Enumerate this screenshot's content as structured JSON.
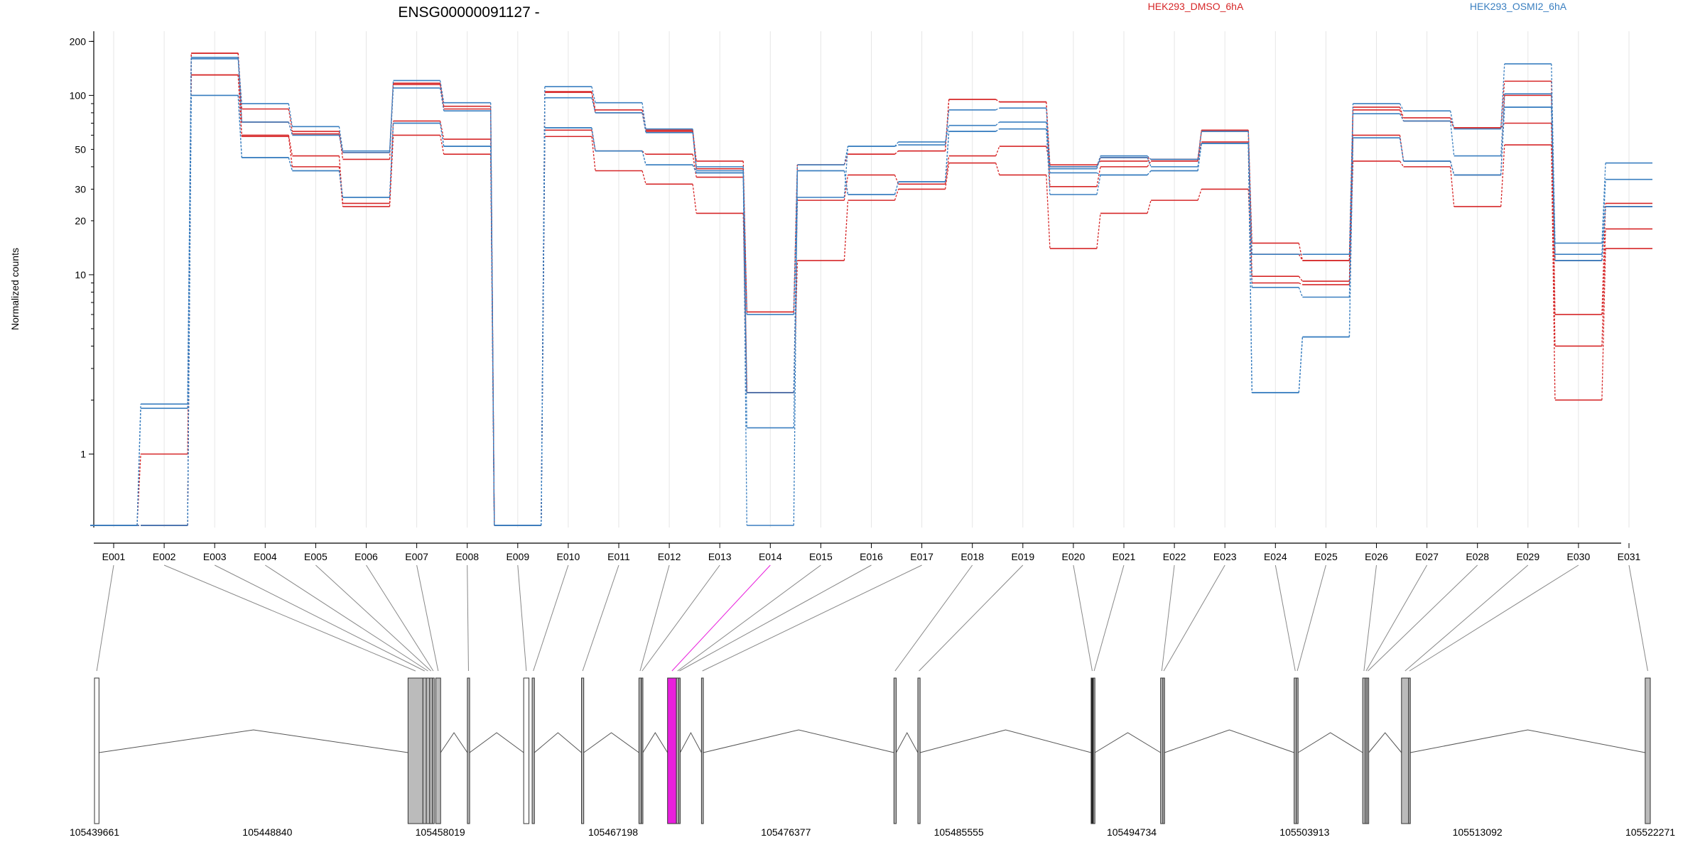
{
  "title": "ENSG00000091127 -",
  "colors": {
    "HEK293_DMSO_6hA": "#d62728",
    "HEK293_OSMI2_6hA": "#3a7fc0",
    "highlight": "#e81fdc",
    "exon_fill": "#bbbbbb",
    "axis": "#000000",
    "grid": "#e6e6e6"
  },
  "chart_data": {
    "type": "line",
    "title": "ENSG00000091127 -",
    "ylabel": "Normalized counts",
    "xlabel": "",
    "y_scale": "log",
    "ylim": [
      0.4,
      210
    ],
    "grid": "vertical",
    "legend": [
      {
        "name": "HEK293_DMSO_6hA",
        "color": "#d62728"
      },
      {
        "name": "HEK293_OSMI2_6hA",
        "color": "#3a7fc0"
      }
    ],
    "legend_placement": "top",
    "y_ticks": [
      1,
      10,
      20,
      30,
      50,
      100,
      200
    ],
    "y_tick_labels": [
      "1",
      "10",
      "20",
      "30",
      "50",
      "100",
      "200"
    ],
    "categories": [
      "E001",
      "E002",
      "E003",
      "E004",
      "E005",
      "E006",
      "E007",
      "E008",
      "E009",
      "E010",
      "E011",
      "E012",
      "E013",
      "E014",
      "E015",
      "E016",
      "E017",
      "E018",
      "E019",
      "E020",
      "E021",
      "E022",
      "E023",
      "E024",
      "E025",
      "E026",
      "E027",
      "E028",
      "E029",
      "E030",
      "E031"
    ],
    "series": [
      {
        "name": "HEK293_DMSO_6hA",
        "group": "HEK293_DMSO_6hA",
        "values": [
          0.4,
          1.0,
          172,
          84,
          63,
          44,
          117,
          87,
          0.4,
          105,
          83,
          64,
          43,
          6.2,
          41,
          47,
          49,
          95,
          92,
          41,
          43,
          44,
          64,
          15,
          12,
          86,
          75,
          66,
          120,
          6.0,
          25
        ]
      },
      {
        "name": "HEK293_DMSO_6hA",
        "group": "HEK293_DMSO_6hA",
        "values": [
          0.4,
          0.4,
          130,
          60,
          46,
          25,
          72,
          57,
          0.4,
          64,
          49,
          47,
          35,
          6.2,
          41,
          47,
          49,
          95,
          92,
          31,
          40,
          43,
          63,
          9.8,
          9.2,
          83,
          72,
          66,
          70,
          4.0,
          18
        ]
      },
      {
        "name": "HEK293_DMSO_6hA",
        "group": "HEK293_DMSO_6hA",
        "values": [
          0.4,
          0.4,
          130,
          59,
          40,
          24,
          60,
          47,
          0.4,
          59,
          38,
          32,
          22,
          2.2,
          12,
          26,
          30,
          42,
          36,
          14,
          22,
          26,
          30,
          9.0,
          8.8,
          43,
          40,
          24,
          53,
          2.0,
          14
        ]
      },
      {
        "name": "HEK293_DMSO_6hA",
        "group": "HEK293_DMSO_6hA",
        "values": [
          0.4,
          0.4,
          172,
          71,
          61,
          48,
          115,
          84,
          0.4,
          104,
          80,
          63,
          39,
          2.2,
          26,
          36,
          32,
          46,
          52,
          40,
          45,
          44,
          55,
          13,
          12,
          60,
          43,
          36,
          100,
          12,
          24
        ]
      },
      {
        "name": "HEK293_OSMI2_6hA",
        "group": "HEK293_OSMI2_6hA",
        "values": [
          0.4,
          1.9,
          163,
          90,
          67,
          49,
          121,
          91,
          0.4,
          112,
          91,
          65,
          40,
          6.0,
          41,
          52,
          55,
          68,
          71,
          40,
          46,
          44,
          63,
          13,
          13,
          90,
          82,
          65,
          150,
          15,
          42
        ]
      },
      {
        "name": "HEK293_OSMI2_6hA",
        "group": "HEK293_OSMI2_6hA",
        "values": [
          0.4,
          1.8,
          160,
          71,
          60,
          48,
          110,
          82,
          0.4,
          97,
          80,
          62,
          38,
          2.2,
          27,
          52,
          53,
          83,
          85,
          39,
          45,
          40,
          54,
          8.5,
          7.5,
          79,
          72,
          46,
          102,
          13,
          34
        ]
      },
      {
        "name": "HEK293_OSMI2_6hA",
        "group": "HEK293_OSMI2_6hA",
        "values": [
          0.4,
          0.4,
          100,
          45,
          38,
          27,
          70,
          52,
          0.4,
          66,
          49,
          41,
          37,
          1.4,
          38,
          28,
          33,
          63,
          65,
          37,
          36,
          38,
          54,
          2.2,
          4.5,
          58,
          43,
          36,
          86,
          12,
          24
        ]
      },
      {
        "name": "HEK293_OSMI2_6hA",
        "group": "HEK293_OSMI2_6hA",
        "values": [
          0.4,
          0.4,
          100,
          45,
          38,
          27,
          70,
          52,
          0.4,
          66,
          49,
          41,
          37,
          0.4,
          38,
          28,
          33,
          63,
          65,
          28,
          36,
          38,
          54,
          2.2,
          4.5,
          58,
          43,
          36,
          86,
          12,
          24
        ]
      }
    ],
    "genomic_axis_labels": [
      "105439661",
      "105448840",
      "105458019",
      "105467198",
      "105476377",
      "105485555",
      "105494734",
      "105503913",
      "105513092",
      "105522271"
    ],
    "genomic_axis_values": [
      105439661,
      105448840,
      105458019,
      105467198,
      105476377,
      105485555,
      105494734,
      105503913,
      105513092,
      105522271
    ],
    "highlighted_exon": "E014",
    "exons": [
      {
        "id": "E001",
        "start": 105439661,
        "end": 105439900,
        "fill": "white"
      },
      {
        "id": "E002",
        "start": 105456310,
        "end": 105457100,
        "fill": "gray"
      },
      {
        "id": "E003",
        "start": 105457100,
        "end": 105457280,
        "fill": "gray"
      },
      {
        "id": "E004",
        "start": 105457280,
        "end": 105457460,
        "fill": "gray"
      },
      {
        "id": "E005",
        "start": 105457460,
        "end": 105457600,
        "fill": "gray"
      },
      {
        "id": "E006",
        "start": 105457600,
        "end": 105457700,
        "fill": "gray"
      },
      {
        "id": "E007",
        "start": 105457780,
        "end": 105458040,
        "fill": "gray"
      },
      {
        "id": "E008",
        "start": 105459460,
        "end": 105459580,
        "fill": "gray"
      },
      {
        "id": "E009",
        "start": 105462450,
        "end": 105462730,
        "fill": "white"
      },
      {
        "id": "E010",
        "start": 105462900,
        "end": 105463020,
        "fill": "gray"
      },
      {
        "id": "E011",
        "start": 105465520,
        "end": 105465640,
        "fill": "gray"
      },
      {
        "id": "E012",
        "start": 105468570,
        "end": 105468690,
        "fill": "gray"
      },
      {
        "id": "E013",
        "start": 105468700,
        "end": 105468780,
        "fill": "gray"
      },
      {
        "id": "E014",
        "start": 105470090,
        "end": 105470560,
        "fill": "highlight"
      },
      {
        "id": "E015",
        "start": 105470560,
        "end": 105470680,
        "fill": "gray"
      },
      {
        "id": "E016",
        "start": 105470680,
        "end": 105470760,
        "fill": "gray"
      },
      {
        "id": "E017",
        "start": 105471890,
        "end": 105471990,
        "fill": "gray"
      },
      {
        "id": "E018",
        "start": 105482110,
        "end": 105482230,
        "fill": "gray"
      },
      {
        "id": "E019",
        "start": 105483380,
        "end": 105483500,
        "fill": "gray"
      },
      {
        "id": "E020",
        "start": 105492580,
        "end": 105492700,
        "fill": "dark"
      },
      {
        "id": "E021",
        "start": 105492700,
        "end": 105492780,
        "fill": "gray"
      },
      {
        "id": "E022",
        "start": 105496270,
        "end": 105496390,
        "fill": "gray"
      },
      {
        "id": "E023",
        "start": 105496390,
        "end": 105496480,
        "fill": "gray"
      },
      {
        "id": "E024",
        "start": 105503360,
        "end": 105503480,
        "fill": "gray"
      },
      {
        "id": "E025",
        "start": 105503480,
        "end": 105503570,
        "fill": "gray"
      },
      {
        "id": "E026",
        "start": 105507000,
        "end": 105507130,
        "fill": "gray"
      },
      {
        "id": "E027",
        "start": 105507130,
        "end": 105507230,
        "fill": "gray"
      },
      {
        "id": "E028",
        "start": 105507230,
        "end": 105507320,
        "fill": "gray"
      },
      {
        "id": "E029",
        "start": 105509060,
        "end": 105509440,
        "fill": "gray"
      },
      {
        "id": "E030",
        "start": 105509440,
        "end": 105509530,
        "fill": "gray"
      },
      {
        "id": "E031",
        "start": 105522000,
        "end": 105522271,
        "fill": "gray"
      }
    ]
  }
}
